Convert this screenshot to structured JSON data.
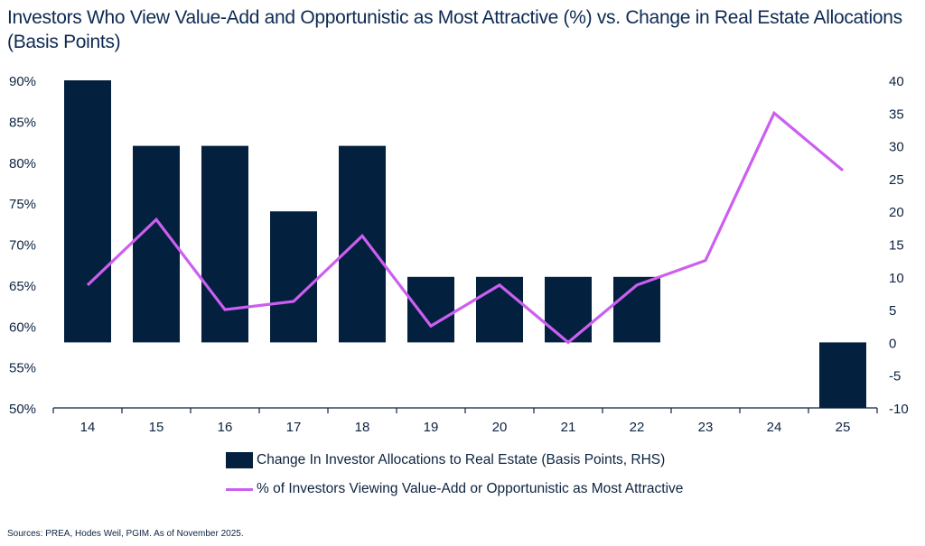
{
  "title": "Investors Who View Value-Add and Opportunistic as Most Attractive (%) vs. Change in Real Estate Allocations (Basis Points)",
  "source": "Sources: PREA, Hodes Weil, PGIM. As of November 2025.",
  "chart_data": {
    "type": "bar+line",
    "categories": [
      "14",
      "15",
      "16",
      "17",
      "18",
      "19",
      "20",
      "21",
      "22",
      "23",
      "24",
      "25"
    ],
    "left_axis": {
      "ylim": [
        50,
        90
      ],
      "ticks": [
        "50%",
        "55%",
        "60%",
        "65%",
        "70%",
        "75%",
        "80%",
        "85%",
        "90%"
      ]
    },
    "right_axis": {
      "ylim": [
        -10,
        40
      ],
      "ticks": [
        "-10",
        "-5",
        "0",
        "5",
        "10",
        "15",
        "20",
        "25",
        "30",
        "35",
        "40"
      ]
    },
    "series": [
      {
        "name": "Change In Investor Allocations to Real Estate (Basis Points, RHS)",
        "type": "bar",
        "axis": "right",
        "color": "#03203f",
        "values": [
          40,
          30,
          30,
          20,
          30,
          10,
          10,
          10,
          10,
          null,
          null,
          -10
        ]
      },
      {
        "name": "% of Investors Viewing Value-Add or Opportunistic as Most Attractive",
        "type": "line",
        "axis": "left",
        "color": "#cc5ef0",
        "values": [
          65,
          73,
          62,
          63,
          71,
          60,
          65,
          58,
          65,
          68,
          86,
          79
        ]
      }
    ],
    "grid": false,
    "legend": "bottom"
  }
}
